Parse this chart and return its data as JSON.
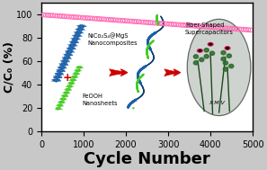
{
  "xlabel": "Cycle Number",
  "ylabel": "C/C₀ (%)",
  "xlim": [
    0,
    5000
  ],
  "ylim": [
    0,
    110
  ],
  "yticks": [
    0,
    20,
    40,
    60,
    80,
    100
  ],
  "xticks": [
    0,
    1000,
    2000,
    3000,
    4000,
    5000
  ],
  "scatter_n_points": 90,
  "scatter_y_start": 100,
  "scatter_y_end": 87,
  "scatter_color": "#FF69B4",
  "scatter_marker_size": 12,
  "background_color": "#c8c8c8",
  "plot_bg_color": "#ffffff",
  "label_nicoco": "NiCo₂S₄@MgS\nNanocomposites",
  "label_feooh": "FeOOH\nNanosheets",
  "label_fiber": "Fiber-Shaped\nSupercapacitors",
  "xlabel_fontsize": 13,
  "ylabel_fontsize": 9,
  "tick_fontsize": 7,
  "arrow_color": "#cc0000",
  "plus_color": "#cc0000",
  "blue_color": "#1a5fa8",
  "green_color": "#2a7a2a",
  "bright_green": "#44cc22"
}
